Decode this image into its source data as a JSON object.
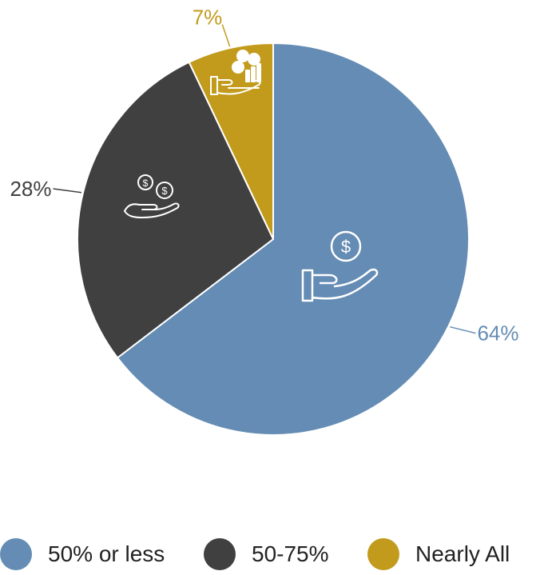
{
  "chart_data": {
    "type": "pie",
    "title": "",
    "categories": [
      "50% or less",
      "50-75%",
      "Nearly All"
    ],
    "values": [
      64,
      28,
      7
    ],
    "labels": [
      "64%",
      "28%",
      "7%"
    ],
    "colors": [
      "#648cb4",
      "#404040",
      "#c29b1c"
    ],
    "start": "12 o'clock",
    "direction": "clockwise",
    "legend_position": "bottom",
    "slice_icons": [
      "hand-holding-coin-icon",
      "hand-holding-coins-icon",
      "hand-coins-growth-icon"
    ]
  }
}
